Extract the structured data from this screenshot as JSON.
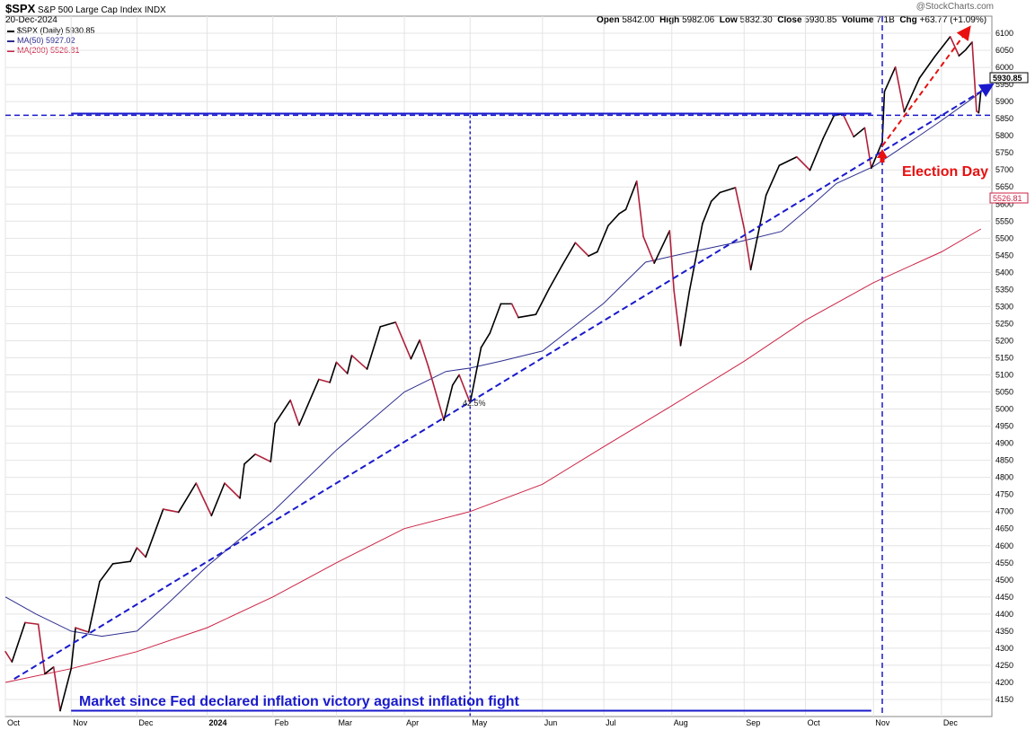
{
  "header": {
    "symbol": "$SPX",
    "name": "S&P 500 Large Cap Index",
    "exchange": "INDX",
    "date": "20-Dec-2024",
    "watermark": "@StockCharts.com",
    "quote": {
      "open_label": "Open",
      "open": "5842.00",
      "high_label": "High",
      "high": "5982.06",
      "low_label": "Low",
      "low": "5832.30",
      "close_label": "Close",
      "close": "5930.85",
      "volume_label": "Volume",
      "volume": "7.1B",
      "chg_label": "Chg",
      "chg": "+63.77 (+1.09%)"
    }
  },
  "legend": [
    {
      "label": "$SPX (Daily) 5930.85",
      "color": "#000000"
    },
    {
      "label": "MA(50) 5927.02",
      "color": "#2e2e8f"
    },
    {
      "label": "MA(200) 5526.81",
      "color": "#cc2244"
    }
  ],
  "annotations": {
    "pct_label": "42.5%",
    "election_label": "Election Day",
    "caption": "Market since Fed declared inflation victory against inflation fight",
    "price_tag": "5930.85",
    "ma200_tag": "5526.81"
  },
  "colors": {
    "price_up": "#000000",
    "price_down": "#b0203a",
    "ma50": "#2e2e8f",
    "ma200": "#cc2244",
    "annotation_blue": "#1a1acc",
    "annotation_red": "#e81010",
    "grid": "#e4e4e4"
  },
  "chart_data": {
    "type": "line",
    "title": "$SPX S&P 500 Large Cap Index",
    "ylim": [
      4100,
      6150
    ],
    "yticks": [
      4150,
      4200,
      4250,
      4300,
      4350,
      4400,
      4450,
      4500,
      4550,
      4600,
      4650,
      4700,
      4750,
      4800,
      4850,
      4900,
      4950,
      5000,
      5050,
      5100,
      5150,
      5200,
      5250,
      5300,
      5350,
      5400,
      5450,
      5500,
      5550,
      5600,
      5650,
      5700,
      5750,
      5800,
      5850,
      5900,
      5950,
      6000,
      6050,
      6100
    ],
    "x_labels": [
      "Oct",
      "Nov",
      "Dec",
      "2024",
      "Feb",
      "Mar",
      "Apr",
      "May",
      "Jun",
      "Jul",
      "Aug",
      "Sep",
      "Oct",
      "Nov",
      "Dec"
    ],
    "x_label_dates": [
      "2023-10-02",
      "2023-11-01",
      "2023-12-01",
      "2024-01-02",
      "2024-02-01",
      "2024-03-01",
      "2024-04-01",
      "2024-05-01",
      "2024-06-03",
      "2024-07-01",
      "2024-08-01",
      "2024-09-03",
      "2024-10-01",
      "2024-11-01",
      "2024-12-02"
    ],
    "grid": true,
    "series": [
      {
        "name": "$SPX (Daily)",
        "points": [
          [
            "2023-10-02",
            4290
          ],
          [
            "2023-10-05",
            4260
          ],
          [
            "2023-10-11",
            4375
          ],
          [
            "2023-10-17",
            4370
          ],
          [
            "2023-10-20",
            4225
          ],
          [
            "2023-10-24",
            4245
          ],
          [
            "2023-10-27",
            4117
          ],
          [
            "2023-11-01",
            4240
          ],
          [
            "2023-11-03",
            4360
          ],
          [
            "2023-11-09",
            4347
          ],
          [
            "2023-11-14",
            4495
          ],
          [
            "2023-11-20",
            4547
          ],
          [
            "2023-11-28",
            4554
          ],
          [
            "2023-12-01",
            4594
          ],
          [
            "2023-12-05",
            4567
          ],
          [
            "2023-12-13",
            4707
          ],
          [
            "2023-12-20",
            4698
          ],
          [
            "2023-12-28",
            4783
          ],
          [
            "2024-01-04",
            4688
          ],
          [
            "2024-01-10",
            4783
          ],
          [
            "2024-01-17",
            4739
          ],
          [
            "2024-01-19",
            4839
          ],
          [
            "2024-01-24",
            4868
          ],
          [
            "2024-01-31",
            4846
          ],
          [
            "2024-02-02",
            4958
          ],
          [
            "2024-02-09",
            5026
          ],
          [
            "2024-02-13",
            4953
          ],
          [
            "2024-02-22",
            5087
          ],
          [
            "2024-02-27",
            5078
          ],
          [
            "2024-03-01",
            5137
          ],
          [
            "2024-03-06",
            5104
          ],
          [
            "2024-03-08",
            5157
          ],
          [
            "2024-03-15",
            5117
          ],
          [
            "2024-03-21",
            5241
          ],
          [
            "2024-03-28",
            5254
          ],
          [
            "2024-04-04",
            5147
          ],
          [
            "2024-04-08",
            5202
          ],
          [
            "2024-04-12",
            5123
          ],
          [
            "2024-04-19",
            4967
          ],
          [
            "2024-04-23",
            5070
          ],
          [
            "2024-04-26",
            5100
          ],
          [
            "2024-05-01",
            5018
          ],
          [
            "2024-05-06",
            5180
          ],
          [
            "2024-05-10",
            5222
          ],
          [
            "2024-05-15",
            5308
          ],
          [
            "2024-05-20",
            5308
          ],
          [
            "2024-05-23",
            5268
          ],
          [
            "2024-05-31",
            5277
          ],
          [
            "2024-06-06",
            5352
          ],
          [
            "2024-06-12",
            5421
          ],
          [
            "2024-06-18",
            5487
          ],
          [
            "2024-06-24",
            5448
          ],
          [
            "2024-06-28",
            5460
          ],
          [
            "2024-07-03",
            5537
          ],
          [
            "2024-07-08",
            5572
          ],
          [
            "2024-07-11",
            5584
          ],
          [
            "2024-07-16",
            5667
          ],
          [
            "2024-07-19",
            5505
          ],
          [
            "2024-07-24",
            5427
          ],
          [
            "2024-07-31",
            5522
          ],
          [
            "2024-08-02",
            5346
          ],
          [
            "2024-08-05",
            5186
          ],
          [
            "2024-08-09",
            5344
          ],
          [
            "2024-08-15",
            5543
          ],
          [
            "2024-08-19",
            5608
          ],
          [
            "2024-08-23",
            5634
          ],
          [
            "2024-08-30",
            5648
          ],
          [
            "2024-09-03",
            5529
          ],
          [
            "2024-09-06",
            5408
          ],
          [
            "2024-09-13",
            5626
          ],
          [
            "2024-09-19",
            5713
          ],
          [
            "2024-09-27",
            5738
          ],
          [
            "2024-10-03",
            5699
          ],
          [
            "2024-10-09",
            5792
          ],
          [
            "2024-10-14",
            5859
          ],
          [
            "2024-10-18",
            5864
          ],
          [
            "2024-10-23",
            5797
          ],
          [
            "2024-10-28",
            5823
          ],
          [
            "2024-10-31",
            5705
          ],
          [
            "2024-11-05",
            5782
          ],
          [
            "2024-11-06",
            5929
          ],
          [
            "2024-11-11",
            6001
          ],
          [
            "2024-11-15",
            5870
          ],
          [
            "2024-11-22",
            5969
          ],
          [
            "2024-11-29",
            6032
          ],
          [
            "2024-12-06",
            6090
          ],
          [
            "2024-12-10",
            6034
          ],
          [
            "2024-12-13",
            6051
          ],
          [
            "2024-12-16",
            6074
          ],
          [
            "2024-12-18",
            5872
          ],
          [
            "2024-12-19",
            5867
          ],
          [
            "2024-12-20",
            5931
          ]
        ]
      },
      {
        "name": "MA(50)",
        "points": [
          [
            "2023-10-02",
            4450
          ],
          [
            "2023-10-16",
            4400
          ],
          [
            "2023-11-01",
            4350
          ],
          [
            "2023-11-15",
            4335
          ],
          [
            "2023-12-01",
            4350
          ],
          [
            "2023-12-15",
            4430
          ],
          [
            "2024-01-02",
            4540
          ],
          [
            "2024-02-01",
            4700
          ],
          [
            "2024-03-01",
            4880
          ],
          [
            "2024-04-01",
            5050
          ],
          [
            "2024-04-20",
            5110
          ],
          [
            "2024-05-01",
            5120
          ],
          [
            "2024-05-15",
            5140
          ],
          [
            "2024-06-03",
            5170
          ],
          [
            "2024-07-01",
            5310
          ],
          [
            "2024-07-20",
            5430
          ],
          [
            "2024-08-10",
            5460
          ],
          [
            "2024-09-01",
            5490
          ],
          [
            "2024-09-20",
            5520
          ],
          [
            "2024-10-01",
            5580
          ],
          [
            "2024-10-15",
            5660
          ],
          [
            "2024-11-01",
            5710
          ],
          [
            "2024-11-15",
            5770
          ],
          [
            "2024-12-01",
            5840
          ],
          [
            "2024-12-20",
            5927
          ]
        ]
      },
      {
        "name": "MA(200)",
        "points": [
          [
            "2023-10-02",
            4200
          ],
          [
            "2023-11-01",
            4240
          ],
          [
            "2023-12-01",
            4290
          ],
          [
            "2024-01-02",
            4360
          ],
          [
            "2024-02-01",
            4450
          ],
          [
            "2024-03-01",
            4550
          ],
          [
            "2024-04-01",
            4650
          ],
          [
            "2024-05-01",
            4700
          ],
          [
            "2024-06-03",
            4780
          ],
          [
            "2024-07-01",
            4890
          ],
          [
            "2024-08-01",
            5010
          ],
          [
            "2024-09-03",
            5140
          ],
          [
            "2024-10-01",
            5260
          ],
          [
            "2024-11-01",
            5370
          ],
          [
            "2024-12-02",
            5460
          ],
          [
            "2024-12-20",
            5527
          ]
        ]
      }
    ]
  }
}
